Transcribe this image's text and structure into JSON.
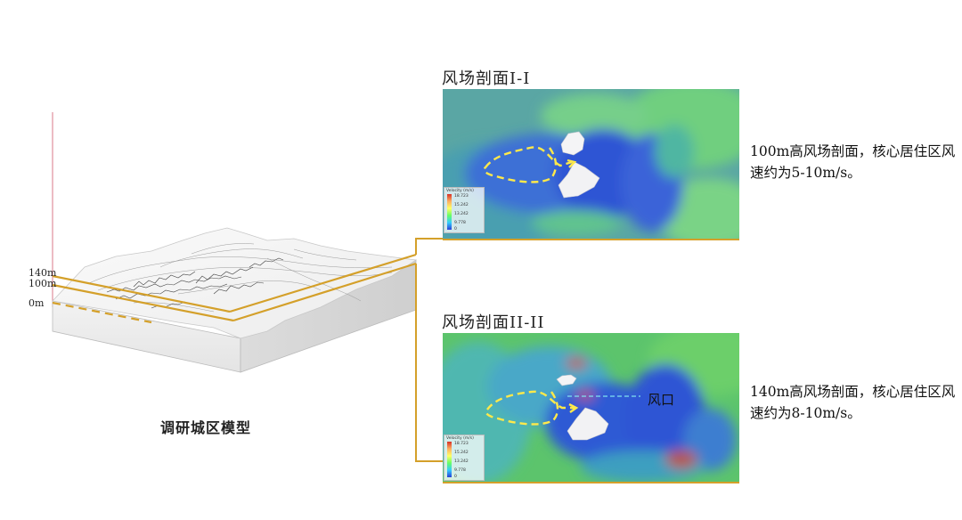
{
  "model": {
    "caption": "调研城区模型",
    "height_labels": [
      "140m",
      "100m",
      "0m"
    ]
  },
  "section1": {
    "title": "风场剖面I-I",
    "description": "100m高风场剖面，核心居住区风速约为5-10m/s。",
    "legend": {
      "title": "Velocity (m/s)",
      "ticks": [
        "18.723",
        "15.242",
        "13.242",
        "9.778",
        "0"
      ]
    }
  },
  "section2": {
    "title": "风场剖面II-II",
    "description": "140m高风场剖面，核心居住区风速约为8-10m/s。",
    "annotation": "风口",
    "legend": {
      "title": "Velocity (m/s)",
      "ticks": [
        "18.723",
        "15.242",
        "13.242",
        "9.778",
        "0"
      ]
    }
  },
  "colors": {
    "section_line": "#d4a02a",
    "core_outline": "#ffe94a",
    "low_speed": "#2f55d4",
    "mid_speed": "#4fc08a",
    "high_speed": "#c2593a"
  }
}
